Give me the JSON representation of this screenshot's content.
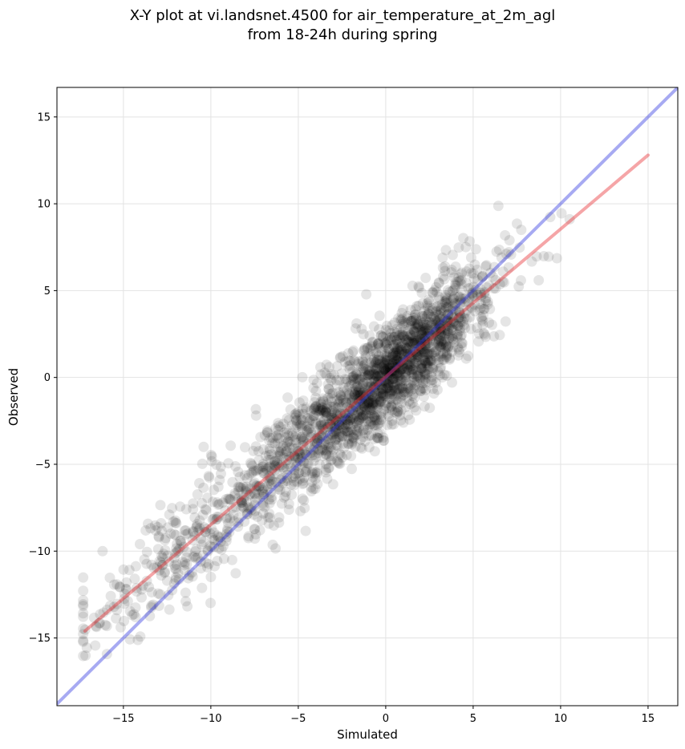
{
  "chart_data": {
    "type": "scatter",
    "title_line1": "X-Y plot at vi.landsnet.4500 for air_temperature_at_2m_agl",
    "title_line2": "from 18-24h during spring",
    "xlabel": "Simulated",
    "ylabel": "Observed",
    "xlim": [
      -18.8,
      16.7
    ],
    "ylim": [
      -18.9,
      16.7
    ],
    "xticks": [
      -15,
      -10,
      -5,
      0,
      5,
      10,
      15
    ],
    "yticks": [
      -15,
      -10,
      -5,
      0,
      5,
      10,
      15
    ],
    "xtick_labels": [
      "−15",
      "−10",
      "−5",
      "0",
      "5",
      "10",
      "15"
    ],
    "ytick_labels": [
      "−15",
      "−10",
      "−5",
      "0",
      "5",
      "10",
      "15"
    ],
    "grid": true,
    "point_color": "#000000",
    "point_opacity": 0.1,
    "n_points": 2200,
    "spread_std": 1.5,
    "regression_line": {
      "color": "#e8292e",
      "x": [
        -17.2,
        15.0
      ],
      "y": [
        -14.6,
        12.8
      ]
    },
    "one_to_one_line": {
      "color": "#2d35e0",
      "x": [
        -18.8,
        16.7
      ],
      "y": [
        -18.8,
        16.7
      ]
    }
  }
}
